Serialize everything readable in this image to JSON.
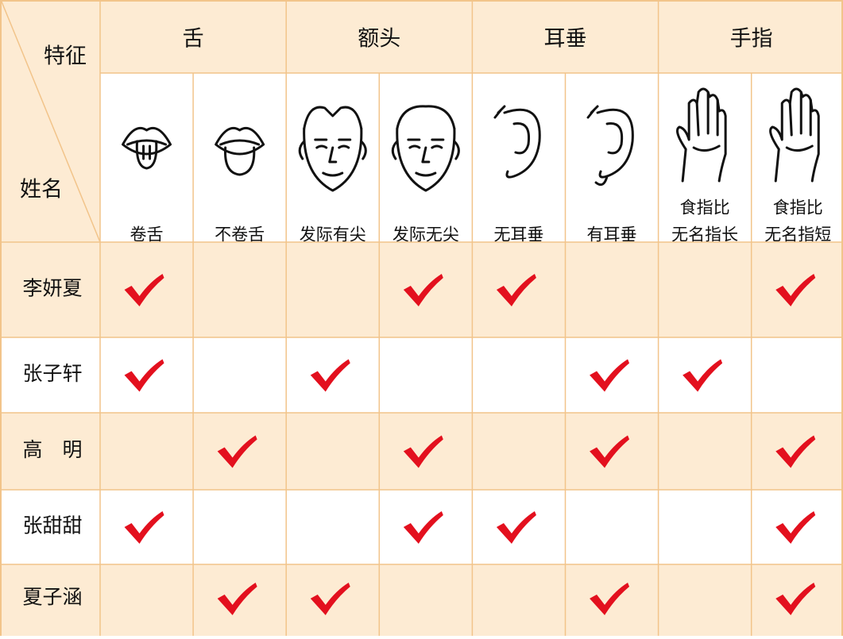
{
  "header": {
    "corner_top": "特征",
    "corner_bottom": "姓名",
    "groups": [
      {
        "label": "舌",
        "columns": [
          {
            "lines": [
              "卷舌"
            ]
          },
          {
            "lines": [
              "不卷舌"
            ]
          }
        ]
      },
      {
        "label": "额头",
        "columns": [
          {
            "lines": [
              "发际有尖"
            ]
          },
          {
            "lines": [
              "发际无尖"
            ]
          }
        ]
      },
      {
        "label": "耳垂",
        "columns": [
          {
            "lines": [
              "无耳垂"
            ]
          },
          {
            "lines": [
              "有耳垂"
            ]
          }
        ]
      },
      {
        "label": "手指",
        "columns": [
          {
            "lines": [
              "食指比",
              "无名指长"
            ]
          },
          {
            "lines": [
              "食指比",
              "无名指短"
            ]
          }
        ]
      }
    ]
  },
  "rows": [
    {
      "name": "李妍夏",
      "checks": [
        true,
        false,
        false,
        true,
        true,
        false,
        false,
        true
      ]
    },
    {
      "name": "张子轩",
      "checks": [
        true,
        false,
        true,
        false,
        false,
        true,
        true,
        false
      ]
    },
    {
      "name": "高　明",
      "checks": [
        false,
        true,
        false,
        true,
        false,
        true,
        false,
        true
      ]
    },
    {
      "name": "张甜甜",
      "checks": [
        true,
        false,
        false,
        true,
        true,
        false,
        false,
        true
      ]
    },
    {
      "name": "夏子涵",
      "checks": [
        false,
        true,
        true,
        false,
        false,
        true,
        false,
        true
      ]
    }
  ]
}
